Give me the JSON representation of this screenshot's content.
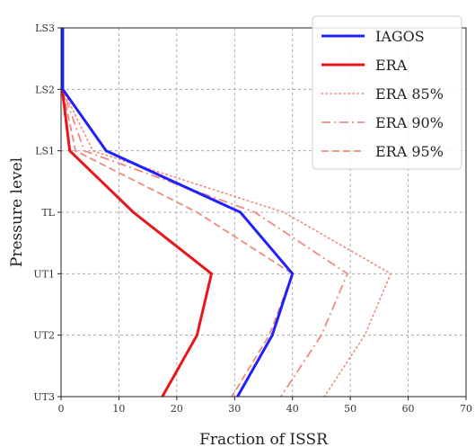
{
  "chart_data": {
    "type": "line",
    "xlabel": "Fraction of ISSR",
    "ylabel": "Pressure level",
    "xlim": [
      0,
      70
    ],
    "x_ticks": [
      0,
      10,
      20,
      30,
      40,
      50,
      60,
      70
    ],
    "categories": [
      "LS3",
      "LS2",
      "LS1",
      "TL",
      "UT1",
      "UT2",
      "UT3"
    ],
    "grid": true,
    "legend_position": "top-right",
    "series": [
      {
        "name": "IAGOS",
        "color": "#1f1fff",
        "style": "solid",
        "width": 3,
        "values": [
          0.3,
          0.3,
          7.8,
          31.0,
          40.0,
          36.5,
          30.5
        ]
      },
      {
        "name": "ERA",
        "color": "#e8161a",
        "style": "solid",
        "width": 3,
        "values": [
          0.2,
          0.2,
          1.5,
          12.5,
          26.0,
          23.5,
          17.5
        ]
      },
      {
        "name": "ERA 85%",
        "color": "#f08a7e",
        "style": "dotted",
        "width": 1.6,
        "values": [
          0.3,
          0.3,
          5.5,
          38.5,
          57.0,
          52.5,
          45.5
        ]
      },
      {
        "name": "ERA 90%",
        "color": "#f08a7e",
        "style": "dashdot",
        "width": 1.8,
        "values": [
          0.3,
          0.3,
          4.0,
          33.5,
          49.5,
          45.0,
          38.0
        ]
      },
      {
        "name": "ERA 95%",
        "color": "#f08a7e",
        "style": "dashed",
        "width": 1.8,
        "values": [
          0.3,
          0.3,
          2.5,
          23.5,
          40.0,
          36.0,
          29.5
        ]
      }
    ]
  }
}
